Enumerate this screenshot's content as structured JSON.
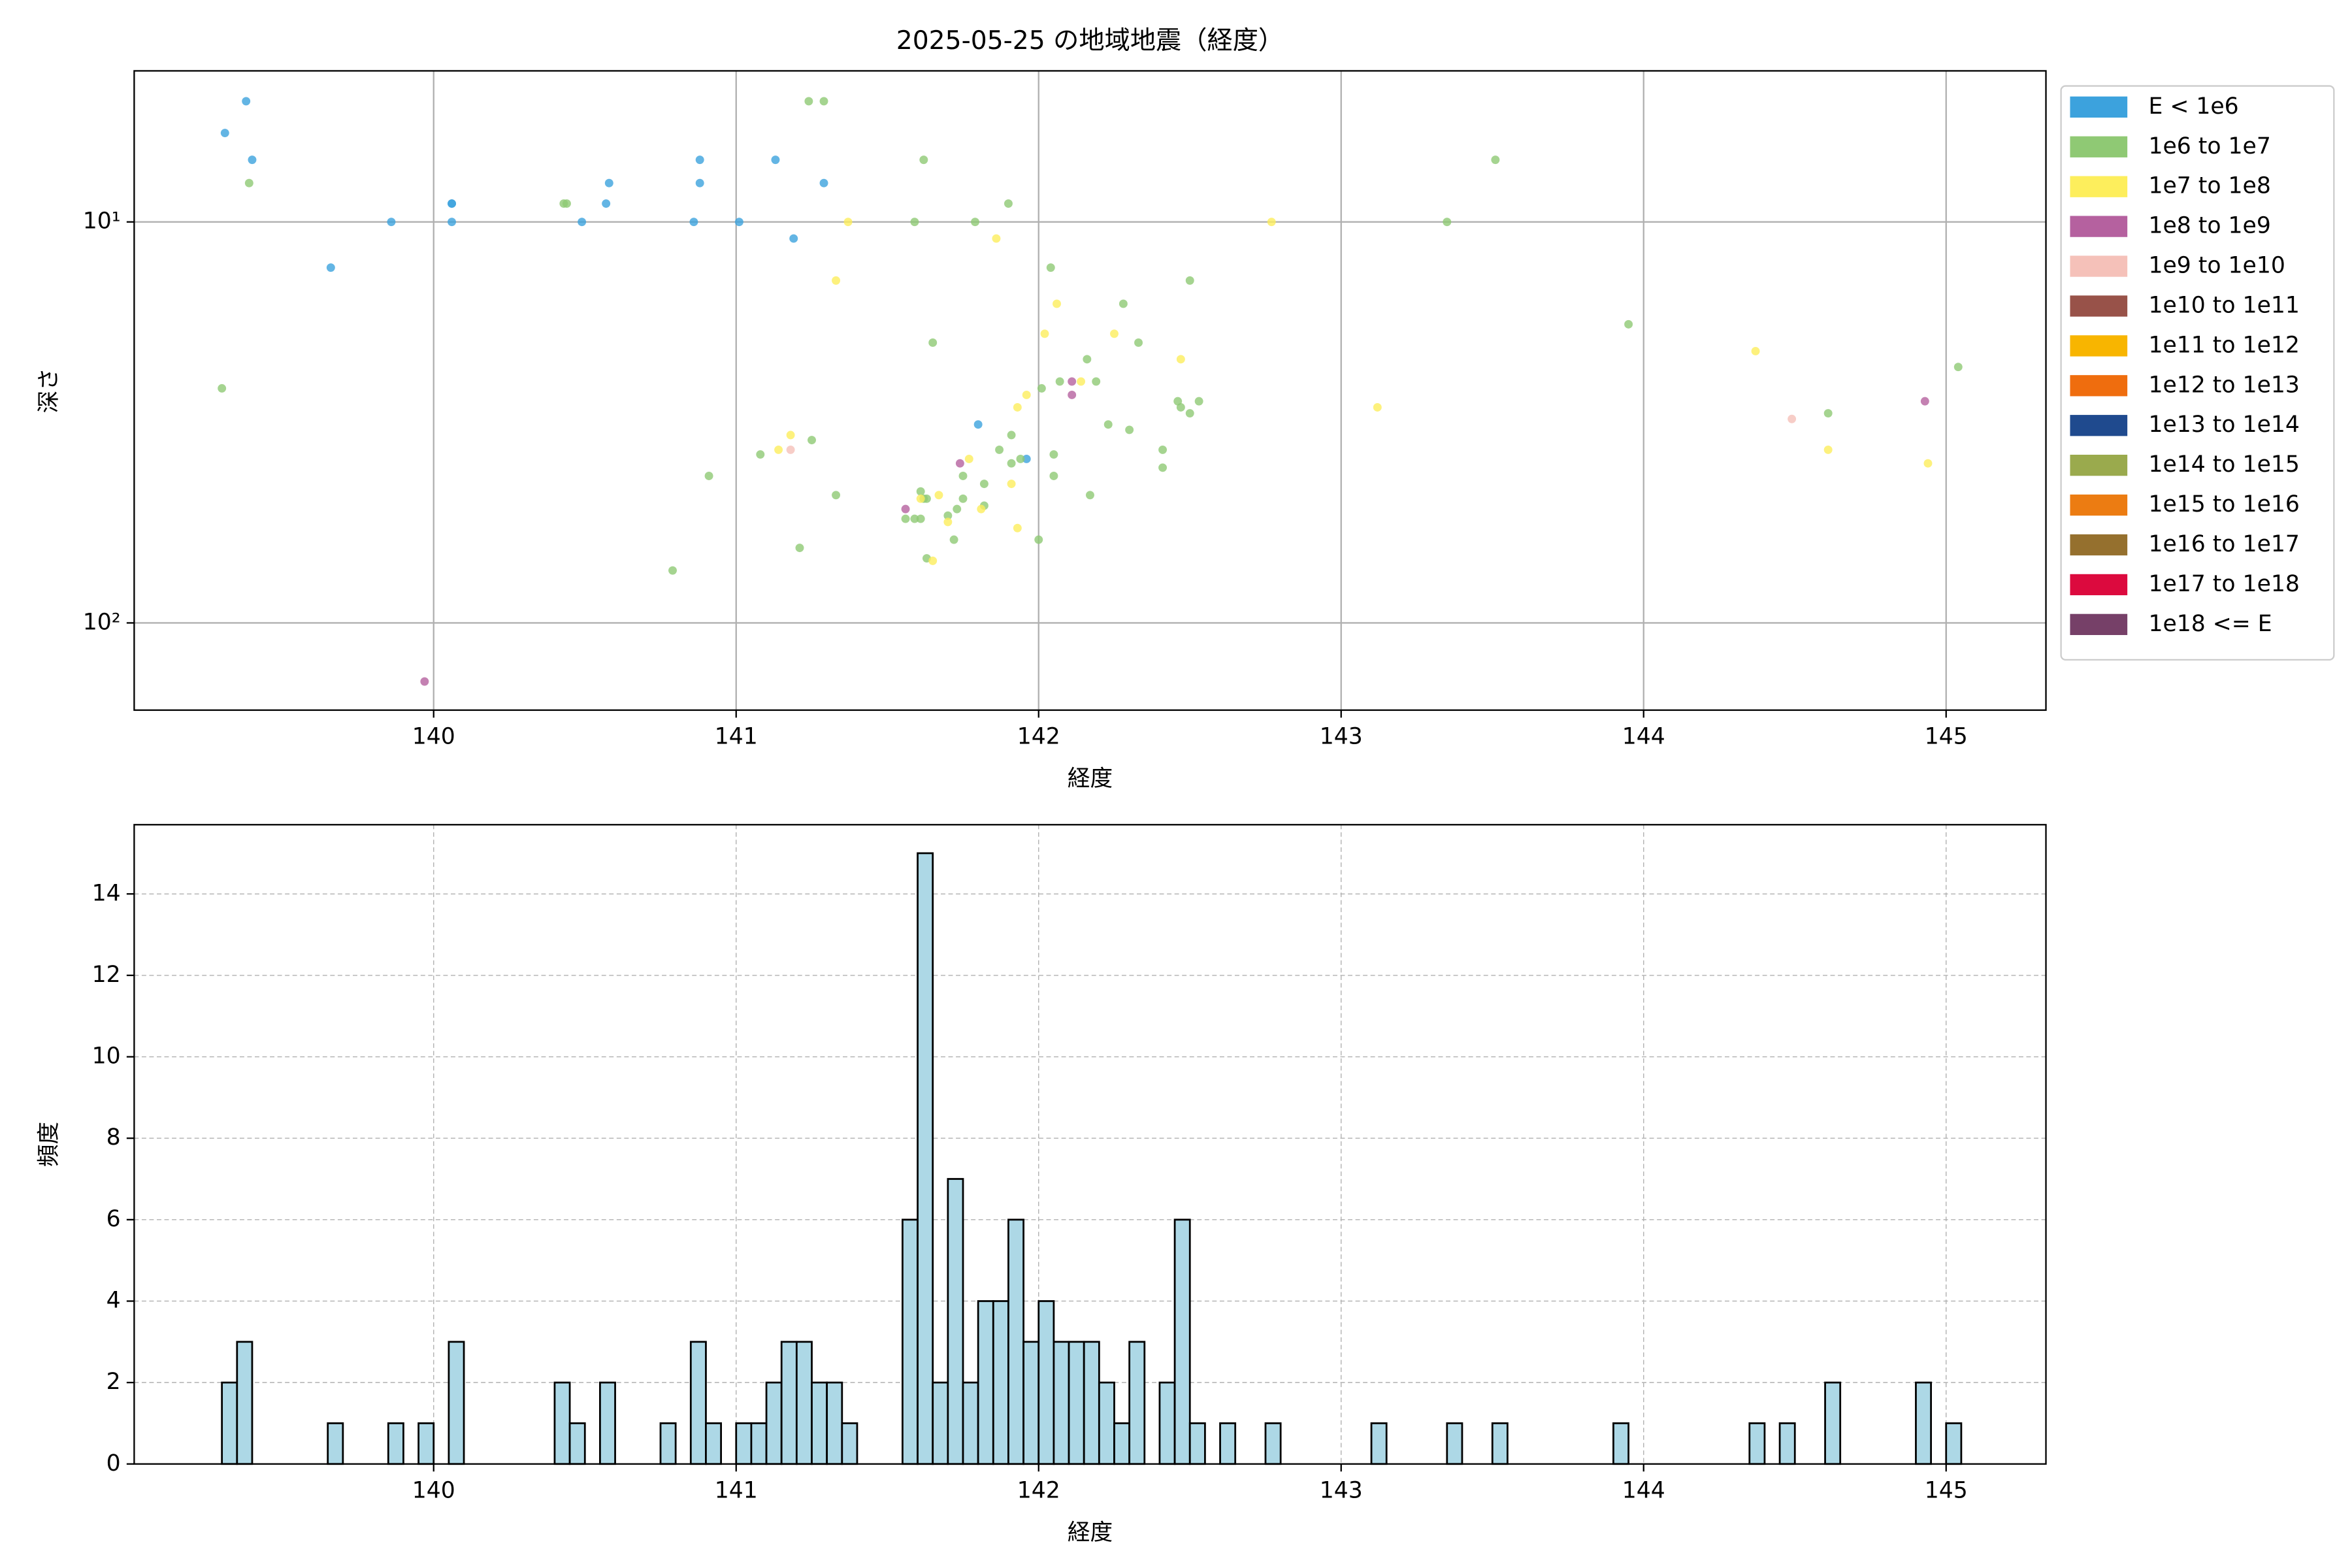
{
  "chart_data": [
    {
      "type": "scatter",
      "title": "2025-05-25 の地域地震（経度）",
      "xlabel": "経度",
      "ylabel": "深さ",
      "xlim": [
        139.01,
        145.33
      ],
      "xticks": [
        140,
        141,
        142,
        143,
        144,
        145
      ],
      "ylim": [
        4.2,
        165
      ],
      "yscale": "log",
      "yinverted": true,
      "yticks": [
        {
          "value": 10,
          "label": "10¹"
        },
        {
          "value": 100,
          "label": "10²"
        }
      ],
      "grid": "solid",
      "legend": "outside upper right",
      "series": [
        {
          "name": "E < 1e6",
          "color": "#3ca2dd",
          "x": [
            139.31,
            139.38,
            139.4,
            139.66,
            139.86,
            140.06,
            140.06,
            140.06,
            140.49,
            140.57,
            140.58,
            140.86,
            140.88,
            140.88,
            141.01,
            141.13,
            141.19,
            141.29,
            141.8,
            141.96
          ],
          "y": [
            6,
            5,
            7,
            13,
            10,
            9,
            9,
            10,
            10,
            9,
            8,
            10,
            8,
            7,
            10,
            7,
            11,
            8,
            32,
            39
          ]
        },
        {
          "name": "1e6 to 1e7",
          "color": "#8fc974",
          "x": [
            139.3,
            139.39,
            140.43,
            140.44,
            140.79,
            140.91,
            141.08,
            141.21,
            141.24,
            141.29,
            141.25,
            141.33,
            141.59,
            141.62,
            141.65,
            141.56,
            141.59,
            141.61,
            141.61,
            141.62,
            141.63,
            141.63,
            141.7,
            141.72,
            141.73,
            141.75,
            141.75,
            141.79,
            141.82,
            141.82,
            141.87,
            141.9,
            141.91,
            141.91,
            141.94,
            142.0,
            142.01,
            142.05,
            142.05,
            142.04,
            142.07,
            142.16,
            142.17,
            142.19,
            142.23,
            142.28,
            142.3,
            142.33,
            142.41,
            142.41,
            142.46,
            142.47,
            142.5,
            142.5,
            142.53,
            143.35,
            143.51,
            143.95,
            144.61,
            145.04
          ],
          "y": [
            26,
            8,
            9,
            9,
            74,
            43,
            38,
            65,
            5,
            5,
            35,
            48,
            10,
            7,
            20,
            55,
            55,
            55,
            47,
            49,
            49,
            69,
            54,
            62,
            52,
            49,
            43,
            10,
            45,
            51,
            37,
            9,
            34,
            40,
            39,
            62,
            26,
            38,
            43,
            13,
            25,
            22,
            48,
            25,
            32,
            16,
            33,
            20,
            37,
            41,
            28,
            29,
            14,
            30,
            28,
            10,
            7,
            18,
            30,
            23
          ]
        },
        {
          "name": "1e7 to 1e8",
          "color": "#fdee5c",
          "x": [
            141.18,
            141.14,
            141.37,
            141.33,
            141.61,
            141.67,
            141.7,
            141.65,
            141.77,
            141.81,
            141.86,
            141.91,
            141.93,
            141.93,
            141.96,
            142.02,
            142.06,
            142.14,
            142.25,
            142.47,
            142.77,
            143.12,
            144.37,
            144.61,
            144.94
          ],
          "y": [
            34,
            37,
            10,
            14,
            49,
            48,
            56,
            70,
            39,
            52,
            11,
            45,
            58,
            29,
            27,
            19,
            16,
            25,
            19,
            22,
            10,
            29,
            21,
            37,
            40
          ]
        },
        {
          "name": "1e8 to 1e9",
          "color": "#b5619f",
          "x": [
            139.97,
            141.56,
            141.74,
            142.11,
            142.11,
            144.93
          ],
          "y": [
            140,
            52,
            40,
            25,
            27,
            28
          ]
        },
        {
          "name": "1e9 to 1e10",
          "color": "#f5c1b9",
          "x": [
            141.18,
            144.49
          ],
          "y": [
            37,
            31
          ]
        },
        {
          "name": "1e10 to 1e11",
          "color": "#985249",
          "x": [],
          "y": []
        },
        {
          "name": "1e11 to 1e12",
          "color": "#f8b500",
          "x": [],
          "y": []
        },
        {
          "name": "1e12 to 1e13",
          "color": "#ef6d0e",
          "x": [],
          "y": []
        },
        {
          "name": "1e13 to 1e14",
          "color": "#1f4a8e",
          "x": [],
          "y": []
        },
        {
          "name": "1e14 to 1e15",
          "color": "#9aaa4d",
          "x": [],
          "y": []
        },
        {
          "name": "1e15 to 1e16",
          "color": "#ec7c12",
          "x": [],
          "y": []
        },
        {
          "name": "1e16 to 1e17",
          "color": "#95702e",
          "x": [],
          "y": []
        },
        {
          "name": "1e17 to 1e18",
          "color": "#dc0a3e",
          "x": [],
          "y": []
        },
        {
          "name": "1e18 <= E",
          "color": "#764068",
          "x": [],
          "y": []
        }
      ]
    },
    {
      "type": "histogram",
      "xlabel": "経度",
      "ylabel": "頻度",
      "color": "#add8e6",
      "edgecolor": "#000000",
      "xlim": [
        139.01,
        145.33
      ],
      "xticks": [
        140,
        141,
        142,
        143,
        144,
        145
      ],
      "ylim": [
        0,
        15.7
      ],
      "yticks": [
        0,
        2,
        4,
        6,
        8,
        10,
        12,
        14
      ],
      "grid": "dashed",
      "bins": [
        139.3,
        139.35,
        139.4,
        139.45,
        139.5,
        139.55,
        139.6,
        139.65,
        139.7,
        139.75,
        139.8,
        139.85,
        139.9,
        139.95,
        140,
        140.05,
        140.1,
        140.15,
        140.2,
        140.25,
        140.3,
        140.35,
        140.4,
        140.45,
        140.5,
        140.55,
        140.6,
        140.65,
        140.7,
        140.75,
        140.8,
        140.85,
        140.9,
        140.95,
        141,
        141.05,
        141.1,
        141.15,
        141.2,
        141.25,
        141.3,
        141.35,
        141.4,
        141.45,
        141.5,
        141.55,
        141.6,
        141.65,
        141.7,
        141.75,
        141.8,
        141.85,
        141.9,
        141.95,
        142,
        142.05,
        142.1,
        142.15,
        142.2,
        142.25,
        142.3,
        142.35,
        142.4,
        142.45,
        142.5,
        142.55,
        142.6,
        142.65,
        142.7,
        142.75,
        142.8,
        142.85,
        142.9,
        142.95,
        143,
        143.05,
        143.1,
        143.15,
        143.2,
        143.25,
        143.3,
        143.35,
        143.4,
        143.45,
        143.5,
        143.55,
        143.6,
        143.65,
        143.7,
        143.75,
        143.8,
        143.85,
        143.9,
        143.95,
        144,
        144.05,
        144.1,
        144.15,
        144.2,
        144.25,
        144.3,
        144.35,
        144.4,
        144.45,
        144.5,
        144.55,
        144.6,
        144.65,
        144.7,
        144.75,
        144.8,
        144.85,
        144.9,
        144.95,
        145,
        145.05
      ],
      "values": [
        2,
        3,
        0,
        0,
        0,
        0,
        0,
        1,
        0,
        0,
        0,
        1,
        0,
        1,
        0,
        3,
        0,
        0,
        0,
        0,
        0,
        0,
        2,
        1,
        0,
        2,
        0,
        0,
        0,
        1,
        0,
        3,
        1,
        0,
        1,
        1,
        2,
        3,
        3,
        2,
        2,
        1,
        0,
        0,
        0,
        6,
        15,
        2,
        7,
        2,
        4,
        4,
        6,
        3,
        4,
        3,
        3,
        3,
        2,
        1,
        3,
        0,
        2,
        6,
        1,
        0,
        1,
        0,
        0,
        1,
        0,
        0,
        0,
        0,
        0,
        0,
        1,
        0,
        0,
        0,
        0,
        1,
        0,
        0,
        1,
        0,
        0,
        0,
        0,
        0,
        0,
        0,
        1,
        0,
        0,
        0,
        0,
        0,
        0,
        0,
        0,
        1,
        0,
        1,
        0,
        0,
        2,
        0,
        0,
        0,
        0,
        0,
        2,
        0,
        1
      ]
    }
  ]
}
